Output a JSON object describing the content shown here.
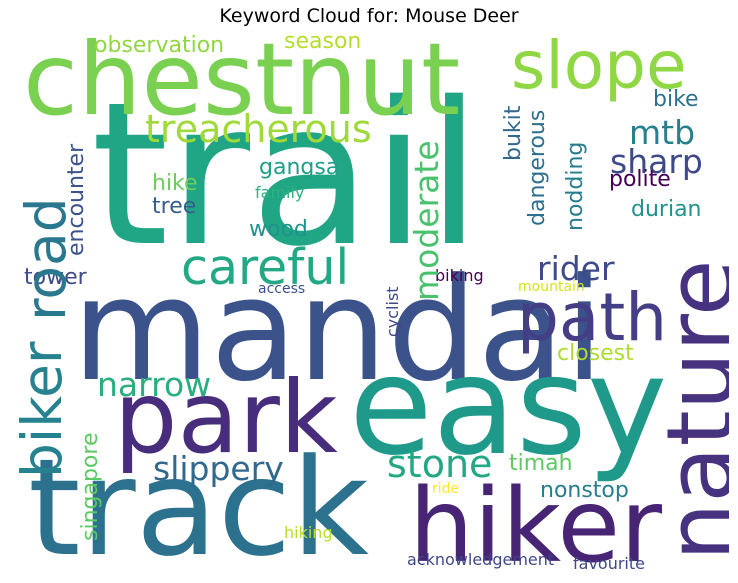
{
  "title": "Keyword Cloud for: Mouse Deer",
  "words": {
    "trail": {
      "text": "trail",
      "color": "#21a685"
    },
    "mandai": {
      "text": "mandai",
      "color": "#3b528b"
    },
    "easy": {
      "text": "easy",
      "color": "#1f9a8a"
    },
    "track": {
      "text": "track",
      "color": "#2c728e"
    },
    "chestnut": {
      "text": "chestnut",
      "color": "#7ad151"
    },
    "nature": {
      "text": "nature",
      "color": "#46327e"
    },
    "hiker": {
      "text": "hiker",
      "color": "#482475"
    },
    "park": {
      "text": "park",
      "color": "#472d7b"
    },
    "road": {
      "text": "road",
      "color": "#2a788e"
    },
    "biker": {
      "text": "biker",
      "color": "#26828e"
    },
    "path": {
      "text": "path",
      "color": "#433e85"
    },
    "slope": {
      "text": "slope",
      "color": "#8fd744"
    },
    "careful": {
      "text": "careful",
      "color": "#22a884"
    },
    "treacherous": {
      "text": "treacherous",
      "color": "#a0da39"
    },
    "slippery": {
      "text": "slippery",
      "color": "#31688e"
    },
    "moderate": {
      "text": "moderate",
      "color": "#4ac16d"
    },
    "stone": {
      "text": "stone",
      "color": "#22a884"
    },
    "narrow": {
      "text": "narrow",
      "color": "#29af7f"
    },
    "sharp": {
      "text": "sharp",
      "color": "#3e4989"
    },
    "rider": {
      "text": "rider",
      "color": "#3e4a89"
    },
    "mtb": {
      "text": "mtb",
      "color": "#27808e"
    },
    "observation": {
      "text": "observation",
      "color": "#90d743"
    },
    "season": {
      "text": "season",
      "color": "#b5de2b"
    },
    "bukit": {
      "text": "bukit",
      "color": "#31688e"
    },
    "dangerous": {
      "text": "dangerous",
      "color": "#2d708e"
    },
    "nodding": {
      "text": "nodding",
      "color": "#287c8e"
    },
    "polite": {
      "text": "polite",
      "color": "#440154"
    },
    "bike": {
      "text": "bike",
      "color": "#2c728e"
    },
    "durian": {
      "text": "durian",
      "color": "#21918c"
    },
    "gangsa": {
      "text": "gangsa",
      "color": "#1f9e89"
    },
    "hike": {
      "text": "hike",
      "color": "#6ccd5a"
    },
    "tree": {
      "text": "tree",
      "color": "#365c8d"
    },
    "family": {
      "text": "family",
      "color": "#2db27d"
    },
    "wood": {
      "text": "wood",
      "color": "#20928c"
    },
    "encounter": {
      "text": "encounter",
      "color": "#3b528b"
    },
    "tower": {
      "text": "tower",
      "color": "#3e4a89"
    },
    "access": {
      "text": "access",
      "color": "#3b528b"
    },
    "cyclist": {
      "text": "cyclist",
      "color": "#3f4788"
    },
    "biking": {
      "text": "biking",
      "color": "#440154"
    },
    "mountain": {
      "text": "mountain",
      "color": "#d8e219"
    },
    "closest": {
      "text": "closest",
      "color": "#addc30"
    },
    "timah": {
      "text": "timah",
      "color": "#5ec962"
    },
    "nonstop": {
      "text": "nonstop",
      "color": "#287d8e"
    },
    "singapore": {
      "text": "singapore",
      "color": "#5ec962"
    },
    "ride": {
      "text": "ride",
      "color": "#fde725"
    },
    "hiking": {
      "text": "hiking",
      "color": "#b5de2b"
    },
    "acknowledgement": {
      "text": "acknowledgement",
      "color": "#3f4788"
    },
    "favourite": {
      "text": "favourite",
      "color": "#3e4989"
    }
  }
}
